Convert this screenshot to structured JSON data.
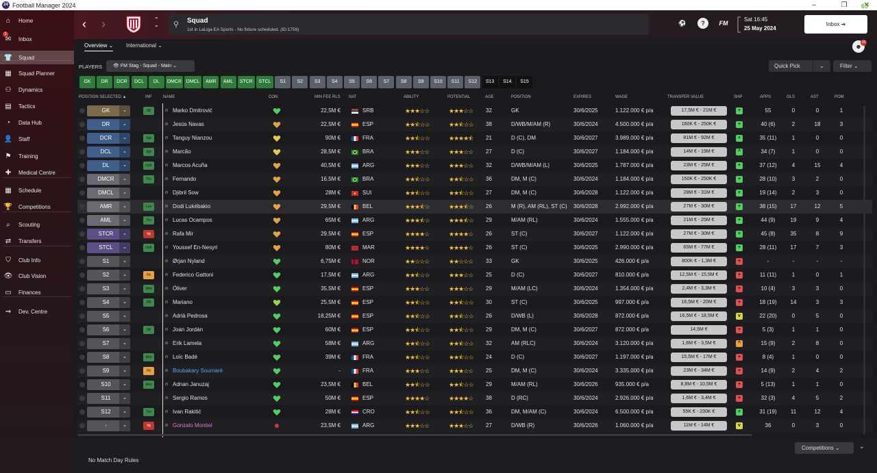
{
  "window": {
    "title": "Football Manager 2024",
    "controls": [
      "–",
      "❐",
      "✕"
    ],
    "counter": "65"
  },
  "sidebar": {
    "items": [
      {
        "label": "Home",
        "icon": "home-icon",
        "glyph": "⌂"
      },
      {
        "label": "Inbox",
        "icon": "inbox-icon",
        "glyph": "✉",
        "badge": "3"
      },
      {
        "label": "Squad",
        "icon": "squad-icon",
        "glyph": "👕"
      },
      {
        "label": "Squad Planner",
        "icon": "squad-planner-icon",
        "glyph": "▦"
      },
      {
        "label": "Dynamics",
        "icon": "dynamics-icon",
        "glyph": "⚇"
      },
      {
        "label": "Tactics",
        "icon": "tactics-icon",
        "glyph": "▤"
      },
      {
        "label": "Data Hub",
        "icon": "data-hub-icon",
        "glyph": "◔"
      },
      {
        "label": "Staff",
        "icon": "staff-icon",
        "glyph": "👤"
      },
      {
        "label": "Training",
        "icon": "training-icon",
        "glyph": "⚑"
      },
      {
        "label": "Medical Centre",
        "icon": "medical-centre-icon",
        "glyph": "✚"
      },
      {
        "label": "Schedule",
        "icon": "schedule-icon",
        "glyph": "▦"
      },
      {
        "label": "Competitions",
        "icon": "competitions-icon",
        "glyph": "🏆"
      },
      {
        "label": "Scouting",
        "icon": "scouting-icon",
        "glyph": "⌕"
      },
      {
        "label": "Transfers",
        "icon": "transfers-icon",
        "glyph": "⇄"
      },
      {
        "label": "Club Info",
        "icon": "club-info-icon",
        "glyph": "⛉"
      },
      {
        "label": "Club Vision",
        "icon": "club-vision-icon",
        "glyph": "👁"
      },
      {
        "label": "Finances",
        "icon": "finances-icon",
        "glyph": "▭"
      },
      {
        "label": "Dev. Centre",
        "icon": "dev-centre-icon",
        "glyph": "⇝"
      }
    ],
    "active": "Squad"
  },
  "header": {
    "back": "‹",
    "forward": "›",
    "updown": "⌃⌄",
    "title": "Squad",
    "subtitle": "1st in LaLiga EA Sports - No fixture scheduled. (ID:1759)",
    "fm_label": "FM",
    "help": "?",
    "date_time": "Sat 16:45",
    "date": "25 May 2024",
    "inbox_label": "Inbox ➔",
    "notif_count": "10"
  },
  "tabs": {
    "overview": "Overview ⌄",
    "international": "International ⌄"
  },
  "toolbar": {
    "players_label": "PLAYERS",
    "view": "👁 FM Stag - Squad - Main  ⌄",
    "quick_pick": "Quick Pick",
    "quick_pick_dd": "⌄",
    "filter": "Filter  ⌄"
  },
  "chips": [
    "GK",
    "DR",
    "DCR",
    "DCL",
    "DL",
    "DMCR",
    "DMCL",
    "AMR",
    "AML",
    "STCR",
    "STCL",
    "S1",
    "S2",
    "S3",
    "S4",
    "S5",
    "S6",
    "S7",
    "S8",
    "S9",
    "S10",
    "S11",
    "S12",
    "S13",
    "S14",
    "S15"
  ],
  "columns": {
    "position_selected": "POSITION SELECTED  ▲",
    "inf": "INF",
    "name": "NAME",
    "con": "CON",
    "min_fee": "MIN FEE RLS",
    "nat": "NAT",
    "ability": "ABILITY",
    "potential": "POTENTIAL",
    "age": "AGE",
    "position": "POSITION",
    "expires": "EXPIRES",
    "wage": "WAGE",
    "transfer_value": "TRANSFER VALUE",
    "shp": "SHP",
    "apps": "APPS",
    "gls": "GLS",
    "ast": "AST",
    "pom": "POM"
  },
  "players": [
    {
      "sel": "GK",
      "inf": "Slt",
      "name": "Marko Dmitrović",
      "con": "green",
      "fee": "22,5M €",
      "nat": "SRB",
      "ab": 3,
      "pot": 3,
      "age": "32",
      "pos": "GK",
      "exp": "30/6/2025",
      "wage": "1.122.000 € p/a",
      "tv": "17,5M € - 21M €",
      "shp": "up",
      "apps": "55",
      "gls": "0",
      "ast": "0",
      "pom": "1"
    },
    {
      "sel": "DR",
      "inf": "",
      "name": "Jesús Navas",
      "con": "orange",
      "fee": "22,5M €",
      "nat": "ESP",
      "ab": 2.5,
      "pot": 2.5,
      "age": "38",
      "pos": "D/WB/M/AM (R)",
      "exp": "30/6/2024",
      "wage": "4.500.000 € p/a",
      "tv": "160K € - 250K €",
      "shp": "up",
      "apps": "40 (6)",
      "gls": "2",
      "ast": "18",
      "pom": "3"
    },
    {
      "sel": "DCR",
      "inf": "Spt",
      "name": "Tanguy Nianzou",
      "con": "yellow",
      "fee": "90M €",
      "nat": "FRA",
      "ab": 2.5,
      "pot": 4.5,
      "age": "21",
      "pos": "D (C), DM",
      "exp": "30/6/2027",
      "wage": "3.989.000 € p/a",
      "tv": "81M € - 92M €",
      "shp": "up",
      "apps": "35 (11)",
      "gls": "1",
      "ast": "0",
      "pom": "0"
    },
    {
      "sel": "DCL",
      "inf": "Spt",
      "name": "Marcão",
      "con": "yellow",
      "fee": "28,5M €",
      "nat": "BRA",
      "ab": 3,
      "pot": 3,
      "age": "27",
      "pos": "D (C)",
      "exp": "30/6/2027",
      "wage": "1.184.000 € p/a",
      "tv": "14M € - 19M €",
      "shp": "up2",
      "apps": "34 (7)",
      "gls": "1",
      "ast": "0",
      "pom": "0"
    },
    {
      "sel": "DL",
      "inf": "Unh",
      "name": "Marcos Acuña",
      "con": "orange",
      "fee": "40,5M €",
      "nat": "ARG",
      "ab": 3,
      "pot": 3,
      "age": "32",
      "pos": "D/WB/M/AM (L)",
      "exp": "30/6/2025",
      "wage": "1.787.000 € p/a",
      "tv": "23M € - 25M €",
      "shp": "up",
      "apps": "37 (12)",
      "gls": "4",
      "ast": "15",
      "pom": "4"
    },
    {
      "sel": "DMCR",
      "inf": "Trn",
      "name": "Fernando",
      "con": "orange",
      "fee": "16,5M €",
      "nat": "BRA",
      "ab": 2.5,
      "pot": 2.5,
      "age": "36",
      "pos": "DM, M (C)",
      "exp": "30/6/2024",
      "wage": "1.184.000 € p/a",
      "tv": "150K € - 250K €",
      "shp": "up",
      "apps": "28 (10)",
      "gls": "3",
      "ast": "2",
      "pom": "0"
    },
    {
      "sel": "DMCL",
      "inf": "",
      "name": "Djibril Sow",
      "con": "orange",
      "fee": "28M €",
      "nat": "SUI",
      "ab": 2.5,
      "pot": 2.5,
      "age": "27",
      "pos": "DM, M (C)",
      "exp": "30/6/2028",
      "wage": "1.122.000 € p/a",
      "tv": "28M € - 31M €",
      "shp": "up",
      "apps": "19 (14)",
      "gls": "2",
      "ast": "3",
      "pom": "0"
    },
    {
      "sel": "AMR",
      "inf": "Lce",
      "name": "Dodi Lukébakio",
      "con": "orange",
      "fee": "29,5M €",
      "nat": "BEL",
      "ab": 3.5,
      "pot": 3.5,
      "age": "26",
      "pos": "M (R), AM (RL), ST (C)",
      "exp": "30/6/2028",
      "wage": "2.992.000 € p/a",
      "tv": "27M € - 30M €",
      "shp": "up",
      "apps": "38 (15)",
      "gls": "17",
      "ast": "12",
      "pom": "5"
    },
    {
      "sel": "AML",
      "inf": "Trn",
      "name": "Lucas Ocampos",
      "con": "orange",
      "fee": "65M €",
      "nat": "ARG",
      "ab": 3.5,
      "pot": 3.5,
      "age": "29",
      "pos": "M/AM (RL)",
      "exp": "30/6/2024",
      "wage": "1.555.000 € p/a",
      "tv": "21M € - 25M €",
      "shp": "up",
      "apps": "44 (9)",
      "gls": "19",
      "ast": "9",
      "pom": "4"
    },
    {
      "sel": "STCR",
      "inf": "Inj",
      "name": "Rafa Mir",
      "con": "orange",
      "fee": "29,5M €",
      "nat": "ESP",
      "ab": 4,
      "pot": 4,
      "age": "26",
      "pos": "ST (C)",
      "exp": "30/6/2027",
      "wage": "1.122.000 € p/a",
      "tv": "27M € - 30M €",
      "shp": "up",
      "apps": "45 (8)",
      "gls": "35",
      "ast": "8",
      "pom": "9"
    },
    {
      "sel": "STCL",
      "inf": "Unh",
      "name": "Youssef En-Nesyri",
      "con": "orange",
      "fee": "80M €",
      "nat": "MAR",
      "ab": 4,
      "pot": 4,
      "age": "26",
      "pos": "ST (C)",
      "exp": "30/6/2025",
      "wage": "2.990.000 € p/a",
      "tv": "65M € - 77M €",
      "shp": "up",
      "apps": "28 (11)",
      "gls": "17",
      "ast": "7",
      "pom": "3"
    },
    {
      "sel": "S1",
      "inf": "",
      "name": "Ørjan Nyland",
      "con": "green",
      "fee": "6,75M €",
      "nat": "NOR",
      "ab": 2,
      "pot": 2,
      "age": "33",
      "pos": "GK",
      "exp": "30/6/2025",
      "wage": "426.000 € p/a",
      "tv": "800K € - 1,3M €",
      "shp": "down",
      "apps": "-",
      "gls": "-",
      "ast": "-",
      "pom": "-"
    },
    {
      "sel": "S2",
      "inf": "Fit",
      "name": "Federico Gattoni",
      "con": "green",
      "fee": "17,5M €",
      "nat": "ARG",
      "ab": 2.5,
      "pot": 3,
      "age": "25",
      "pos": "D (C)",
      "exp": "30/6/2027",
      "wage": "810.000 € p/a",
      "tv": "12,5M € - 15,5M €",
      "shp": "down",
      "apps": "11 (11)",
      "gls": "1",
      "ast": "0",
      "pom": "1"
    },
    {
      "sel": "S3",
      "inf": "Wnt",
      "name": "Óliver",
      "con": "green",
      "fee": "35,5M €",
      "nat": "ESP",
      "ab": 3,
      "pot": 3,
      "age": "29",
      "pos": "M/AM (LC)",
      "exp": "30/6/2024",
      "wage": "1.354.000 € p/a",
      "tv": "2,4M € - 3,3M €",
      "shp": "down",
      "apps": "10 (4)",
      "gls": "3",
      "ast": "3",
      "pom": "0"
    },
    {
      "sel": "S4",
      "inf": "PR",
      "name": "Mariano",
      "con": "lime",
      "fee": "25,5M €",
      "nat": "ESP",
      "ab": 2.5,
      "pot": 2.5,
      "age": "30",
      "pos": "ST (C)",
      "exp": "30/6/2025",
      "wage": "997.000 € p/a",
      "tv": "16,5M € - 20M €",
      "shp": "down",
      "apps": "18 (19)",
      "gls": "14",
      "ast": "3",
      "pom": "3"
    },
    {
      "sel": "S5",
      "inf": "",
      "name": "Adrià Pedrosa",
      "con": "green",
      "fee": "18,25M €",
      "nat": "ESP",
      "ab": 2.5,
      "pot": 2.5,
      "age": "26",
      "pos": "D/WB (L)",
      "exp": "30/6/2028",
      "wage": "872.000 € p/a",
      "tv": "16,5M € - 18,5M €",
      "shp": "ok",
      "apps": "22 (20)",
      "gls": "0",
      "ast": "5",
      "pom": "0"
    },
    {
      "sel": "S6",
      "inf": "Slt",
      "name": "Joan Jordán",
      "con": "green",
      "fee": "60M €",
      "nat": "ESP",
      "ab": 2.5,
      "pot": 2.5,
      "age": "29",
      "pos": "DM, M (C)",
      "exp": "30/6/2027",
      "wage": "872.000 € p/a",
      "tv": "14,5M €",
      "shp": "down",
      "apps": "5 (3)",
      "gls": "1",
      "ast": "1",
      "pom": "0"
    },
    {
      "sel": "S7",
      "inf": "",
      "name": "Erik Lamela",
      "con": "green",
      "fee": "58M €",
      "nat": "ARG",
      "ab": 2.5,
      "pot": 2.5,
      "age": "32",
      "pos": "AM (RLC)",
      "exp": "30/6/2024",
      "wage": "3.120.000 € p/a",
      "tv": "1,6M € - 3,5M €",
      "shp": "warn",
      "apps": "15 (9)",
      "gls": "2",
      "ast": "8",
      "pom": "0"
    },
    {
      "sel": "S8",
      "inf": "Adv",
      "name": "Loïc Badé",
      "con": "green",
      "fee": "39M €",
      "nat": "FRA",
      "ab": 2.5,
      "pot": 2.5,
      "age": "24",
      "pos": "D (C)",
      "exp": "30/6/2027",
      "wage": "1.197.000 € p/a",
      "tv": "15,5M € - 17M €",
      "shp": "down",
      "apps": "8 (4)",
      "gls": "1",
      "ast": "0",
      "pom": "0"
    },
    {
      "sel": "S9",
      "inf": "Fit",
      "name": "Boubakary Soumaré",
      "con": "green",
      "fee": "-",
      "nat": "FRA",
      "ab": 3,
      "pot": 3,
      "age": "25",
      "pos": "DM, M (C)",
      "exp": "30/6/2024",
      "wage": "3.335.000 € p/a",
      "tv": "23M € - 34M €",
      "shp": "down",
      "apps": "14 (9)",
      "gls": "2",
      "ast": "4",
      "pom": "2",
      "loan": true
    },
    {
      "sel": "S10",
      "inf": "Adv",
      "name": "Adnan Januzaj",
      "con": "green",
      "fee": "23,5M €",
      "nat": "BEL",
      "ab": 2.5,
      "pot": 2.5,
      "age": "29",
      "pos": "M/AM (RL)",
      "exp": "30/6/2026",
      "wage": "935.000 € p/a",
      "tv": "8,8M € - 10,5M €",
      "shp": "down",
      "apps": "5 (13)",
      "gls": "1",
      "ast": "1",
      "pom": "0"
    },
    {
      "sel": "S11",
      "inf": "",
      "name": "Sergio Ramos",
      "con": "green",
      "fee": "50M €",
      "nat": "ESP",
      "ab": 4,
      "pot": 4,
      "age": "38",
      "pos": "D (RC)",
      "exp": "30/6/2024",
      "wage": "2.926.000 € p/a",
      "tv": "1,6M € - 3,4M €",
      "shp": "down",
      "apps": "32 (3)",
      "gls": "4",
      "ast": "5",
      "pom": "2"
    },
    {
      "sel": "S12",
      "inf": "Trn",
      "name": "Ivan Rakitić",
      "con": "green",
      "fee": "28M €",
      "nat": "CRO",
      "ab": 2.5,
      "pot": 2.5,
      "age": "36",
      "pos": "DM, M/AM (C)",
      "exp": "30/6/2024",
      "wage": "6.500.000 € p/a",
      "tv": "55K € - 230K €",
      "shp": "up",
      "apps": "31 (19)",
      "gls": "11",
      "ast": "12",
      "pom": "4"
    },
    {
      "sel": "-",
      "inf": "Inj",
      "name": "Gonzalo Montiel",
      "con": "red",
      "fee": "23,5M €",
      "nat": "ARG",
      "ab": 3,
      "pot": 3,
      "age": "27",
      "pos": "D/WB (R)",
      "exp": "30/6/2026",
      "wage": "1.060.000 € p/a",
      "tv": "11M € - 14M €",
      "shp": "ok",
      "apps": "36",
      "gls": "0",
      "ast": "3",
      "pom": "0",
      "injured": true
    }
  ],
  "footer": {
    "match_rules": "No Match Day Rules",
    "competitions": "Competitions  ⌄",
    "expand": "⌄"
  },
  "colors": {
    "gk": "#7a6a4a",
    "def": "#3f5f8a",
    "mid": "#6a6a72",
    "att": "#5b4f86",
    "sub": "#555559",
    "green_chip": "#2e7d3a",
    "grey_chip": "#5a6168",
    "black_chip": "#111"
  }
}
